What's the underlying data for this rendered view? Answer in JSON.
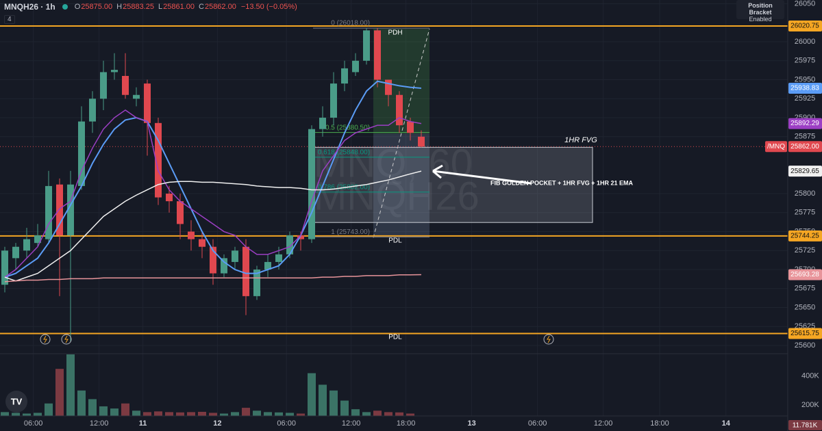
{
  "header": {
    "symbol": "MNQH26 · 1h",
    "ohlc_keys": [
      "O",
      "H",
      "L",
      "C"
    ],
    "ohlc_values": [
      "25875.00",
      "25883.25",
      "25861.00",
      "25862.00"
    ],
    "change": "−13.50 (−0.05%)",
    "indicators": "4"
  },
  "panel": {
    "title": "Position Bracket",
    "status": "Enabled"
  },
  "chart_data": {
    "type": "candlestick",
    "watermark": [
      "MNQ, 60",
      "MNQH26"
    ],
    "x": [
      0,
      1,
      2,
      3,
      4,
      5,
      6,
      7,
      8,
      9,
      10,
      11,
      12,
      13,
      14,
      15,
      16,
      17,
      18,
      19,
      20,
      21,
      22,
      23,
      24,
      25,
      26,
      27,
      28,
      29,
      30,
      31,
      32,
      33,
      34,
      35,
      36,
      37,
      38
    ],
    "xlim": [
      -0.4375,
      71.4375
    ],
    "xticks": [
      {
        "value": 2.6,
        "label": "06:00"
      },
      {
        "value": 8.6,
        "label": "12:00"
      },
      {
        "value": 12.6,
        "label": "11"
      },
      {
        "value": 19.4,
        "label": "12"
      },
      {
        "value": 25.7,
        "label": "06:00"
      },
      {
        "value": 31.6,
        "label": "12:00"
      },
      {
        "value": 36.6,
        "label": "18:00"
      },
      {
        "value": 42.6,
        "label": "13"
      },
      {
        "value": 48.6,
        "label": "06:00"
      },
      {
        "value": 54.6,
        "label": "12:00"
      },
      {
        "value": 59.75,
        "label": "18:00"
      },
      {
        "value": 65.8,
        "label": "14"
      }
    ],
    "ylim": [
      25591,
      26055
    ],
    "yticks": [
      26050,
      26000,
      25975,
      25950,
      25925,
      25900,
      25875,
      25800,
      25775,
      25750,
      25725,
      25700,
      25675,
      25650,
      25625,
      25600
    ],
    "open": [
      25680,
      25715,
      25725,
      25735,
      25740,
      25812,
      25745,
      25810,
      25895,
      25925,
      25960,
      25955,
      25925,
      25945,
      25893,
      25800,
      25790,
      25750,
      25740,
      25730,
      25695,
      25710,
      25730,
      25665,
      25700,
      25710,
      25720,
      25745,
      25740,
      25885,
      25900,
      25945,
      25960,
      25975,
      26015,
      25950,
      25930,
      25895,
      25875
    ],
    "high": [
      25730,
      25735,
      25755,
      25760,
      25830,
      25820,
      25830,
      25915,
      25935,
      25975,
      25985,
      25985,
      25940,
      25950,
      25900,
      25810,
      25800,
      25765,
      25750,
      25740,
      25720,
      25730,
      25740,
      25705,
      25720,
      25730,
      25750,
      25750,
      25890,
      25915,
      25960,
      25975,
      25985,
      26018,
      26018,
      25950,
      25935,
      25900,
      25883.25
    ],
    "low": [
      25670,
      25700,
      25715,
      25730,
      25735,
      25665,
      25605,
      25805,
      25880,
      25910,
      25950,
      25925,
      25915,
      25850,
      25785,
      25775,
      25740,
      25725,
      25715,
      25680,
      25690,
      25700,
      25640,
      25660,
      25690,
      25700,
      25715,
      25725,
      25735,
      25875,
      25890,
      25935,
      25955,
      25970,
      25940,
      25915,
      25880,
      25870,
      25861
    ],
    "close": [
      25725,
      25730,
      25740,
      25745,
      25810,
      25745,
      25812,
      25895,
      25925,
      25960,
      25963,
      25930,
      25930,
      25893,
      25795,
      25790,
      25760,
      25740,
      25730,
      25695,
      25715,
      25725,
      25665,
      25700,
      25710,
      25720,
      25745,
      25740,
      25885,
      25900,
      25945,
      25965,
      25975,
      26015,
      25950,
      25930,
      25890,
      25880,
      25862
    ],
    "up_color": "#4a9c88",
    "down_color": "#e0484f",
    "series": [
      {
        "color": "#5b9cf6",
        "values": [
          25690,
          25695,
          25705,
          25715,
          25735,
          25760,
          25785,
          25810,
          25840,
          25865,
          25885,
          25897,
          25900,
          25895,
          25870,
          25840,
          25810,
          25780,
          25750,
          25725,
          25710,
          25700,
          25695,
          25695,
          25700,
          25705,
          25720,
          25745,
          25775,
          25810,
          25845,
          25880,
          25910,
          25935,
          25948,
          25945,
          25942,
          25940,
          25938.83
        ]
      },
      {
        "color": "#9c3fc4",
        "values": [
          25690,
          25700,
          25715,
          25730,
          25760,
          25780,
          25790,
          25830,
          25860,
          25885,
          25900,
          25910,
          25900,
          25895,
          25830,
          25805,
          25790,
          25780,
          25770,
          25760,
          25750,
          25745,
          25730,
          25720,
          25720,
          25725,
          25730,
          25745,
          25790,
          25830,
          25850,
          25870,
          25880,
          25885,
          25890,
          25890,
          25900,
          25895,
          25892.29
        ]
      },
      {
        "color": "#f0f0f0",
        "values": [
          25690,
          25685,
          25690,
          25695,
          25705,
          25715,
          25725,
          25740,
          25755,
          25770,
          25780,
          25790,
          25798,
          25805,
          25812,
          25815,
          25816,
          25816,
          25815,
          25815,
          25814,
          25813,
          25812,
          25810,
          25809,
          25808,
          25808,
          25807,
          25805,
          25805,
          25806,
          25808,
          25810,
          25812,
          25815,
          25818,
          25822,
          25826,
          25829.65
        ]
      },
      {
        "color": "#e8949a",
        "values": [
          25684,
          25685,
          25686,
          25686,
          25687,
          25687,
          25688,
          25688,
          25688,
          25689,
          25689,
          25689,
          25689,
          25689,
          25689,
          25689,
          25689,
          25689,
          25689,
          25689,
          25689,
          25689,
          25689,
          25689,
          25689,
          25689,
          25689,
          25689,
          25689,
          25690,
          25690,
          25691,
          25691,
          25692,
          25692,
          25692,
          25693,
          25693,
          25693.28
        ]
      }
    ],
    "levels": [
      {
        "value": 26020.75
      },
      {
        "value": 25744.25
      },
      {
        "value": 25615.75
      }
    ],
    "level_color": "#f5a623",
    "last_price": {
      "value": 25862,
      "label": "25862.00",
      "tag": "/MNQ"
    },
    "annotations": [
      {
        "text": "PDH",
        "value": 26012
      },
      {
        "text": "PDL",
        "value": 25738
      },
      {
        "text": "PDL",
        "value": 25611
      }
    ],
    "fib": {
      "levels": [
        {
          "value": 26018,
          "label": "0 (26018.00)",
          "color": "#787b86"
        },
        {
          "value": 25880.5,
          "label": "0.5 (25880.50)",
          "color": "#4caf50"
        },
        {
          "value": 25848,
          "label": "0.618 (25848.00)",
          "color": "#089981"
        },
        {
          "value": 25802,
          "label": "0.786 (25802.00)",
          "color": "#089981"
        },
        {
          "value": 25743,
          "label": "1 (25743.00)",
          "color": "#787b86"
        }
      ]
    },
    "fvg": {
      "label": "1HR FVG",
      "top": 25861,
      "bottom": 25762
    },
    "position": {
      "target": 26017,
      "entry": 25879,
      "stop": 25742
    },
    "note": "FIB GOLDEN POCKET + 1HR FVG + 1HR 21 EMA",
    "volume": {
      "values": [
        150000,
        145000,
        140000,
        145000,
        210000,
        450000,
        552000,
        300000,
        240000,
        190000,
        175000,
        210000,
        160000,
        150000,
        155000,
        150000,
        148000,
        150000,
        152000,
        145000,
        140000,
        150000,
        180000,
        160000,
        150000,
        148000,
        145000,
        140000,
        420000,
        340000,
        300000,
        230000,
        170000,
        150000,
        160000,
        150000,
        148000,
        140000,
        11781
      ],
      "last_label": "11.781K",
      "ylim": [
        0,
        560000
      ],
      "yticks": [
        {
          "value": 400000,
          "label": "400K"
        },
        {
          "value": 200000,
          "label": "200K"
        }
      ],
      "up_color": "#3b7366",
      "down_color": "#7c3a42"
    }
  }
}
